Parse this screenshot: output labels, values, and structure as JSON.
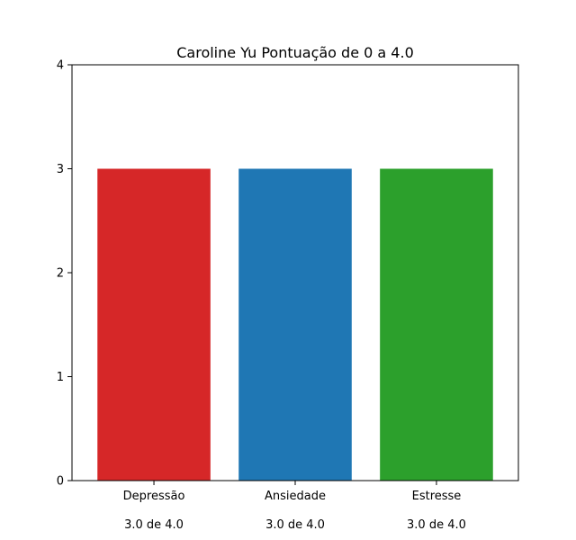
{
  "chart_data": {
    "type": "bar",
    "title": "Caroline Yu Pontuação de 0 a 4.0",
    "xlabel": "",
    "ylabel": "",
    "categories": [
      "Depressão",
      "Ansiedade",
      "Estresse"
    ],
    "values": [
      3.0,
      3.0,
      3.0
    ],
    "value_labels": [
      "3.0 de 4.0",
      "3.0 de 4.0",
      "3.0 de 4.0"
    ],
    "colors": [
      "#d62728",
      "#1f77b4",
      "#2ca02c"
    ],
    "ylim": [
      0,
      4
    ],
    "yticks": [
      {
        "value": 0,
        "label": "0"
      },
      {
        "value": 1,
        "label": "1"
      },
      {
        "value": 2,
        "label": "2"
      },
      {
        "value": 3,
        "label": "3"
      },
      {
        "value": 4,
        "label": "4"
      }
    ],
    "grid": false,
    "legend": "none"
  }
}
